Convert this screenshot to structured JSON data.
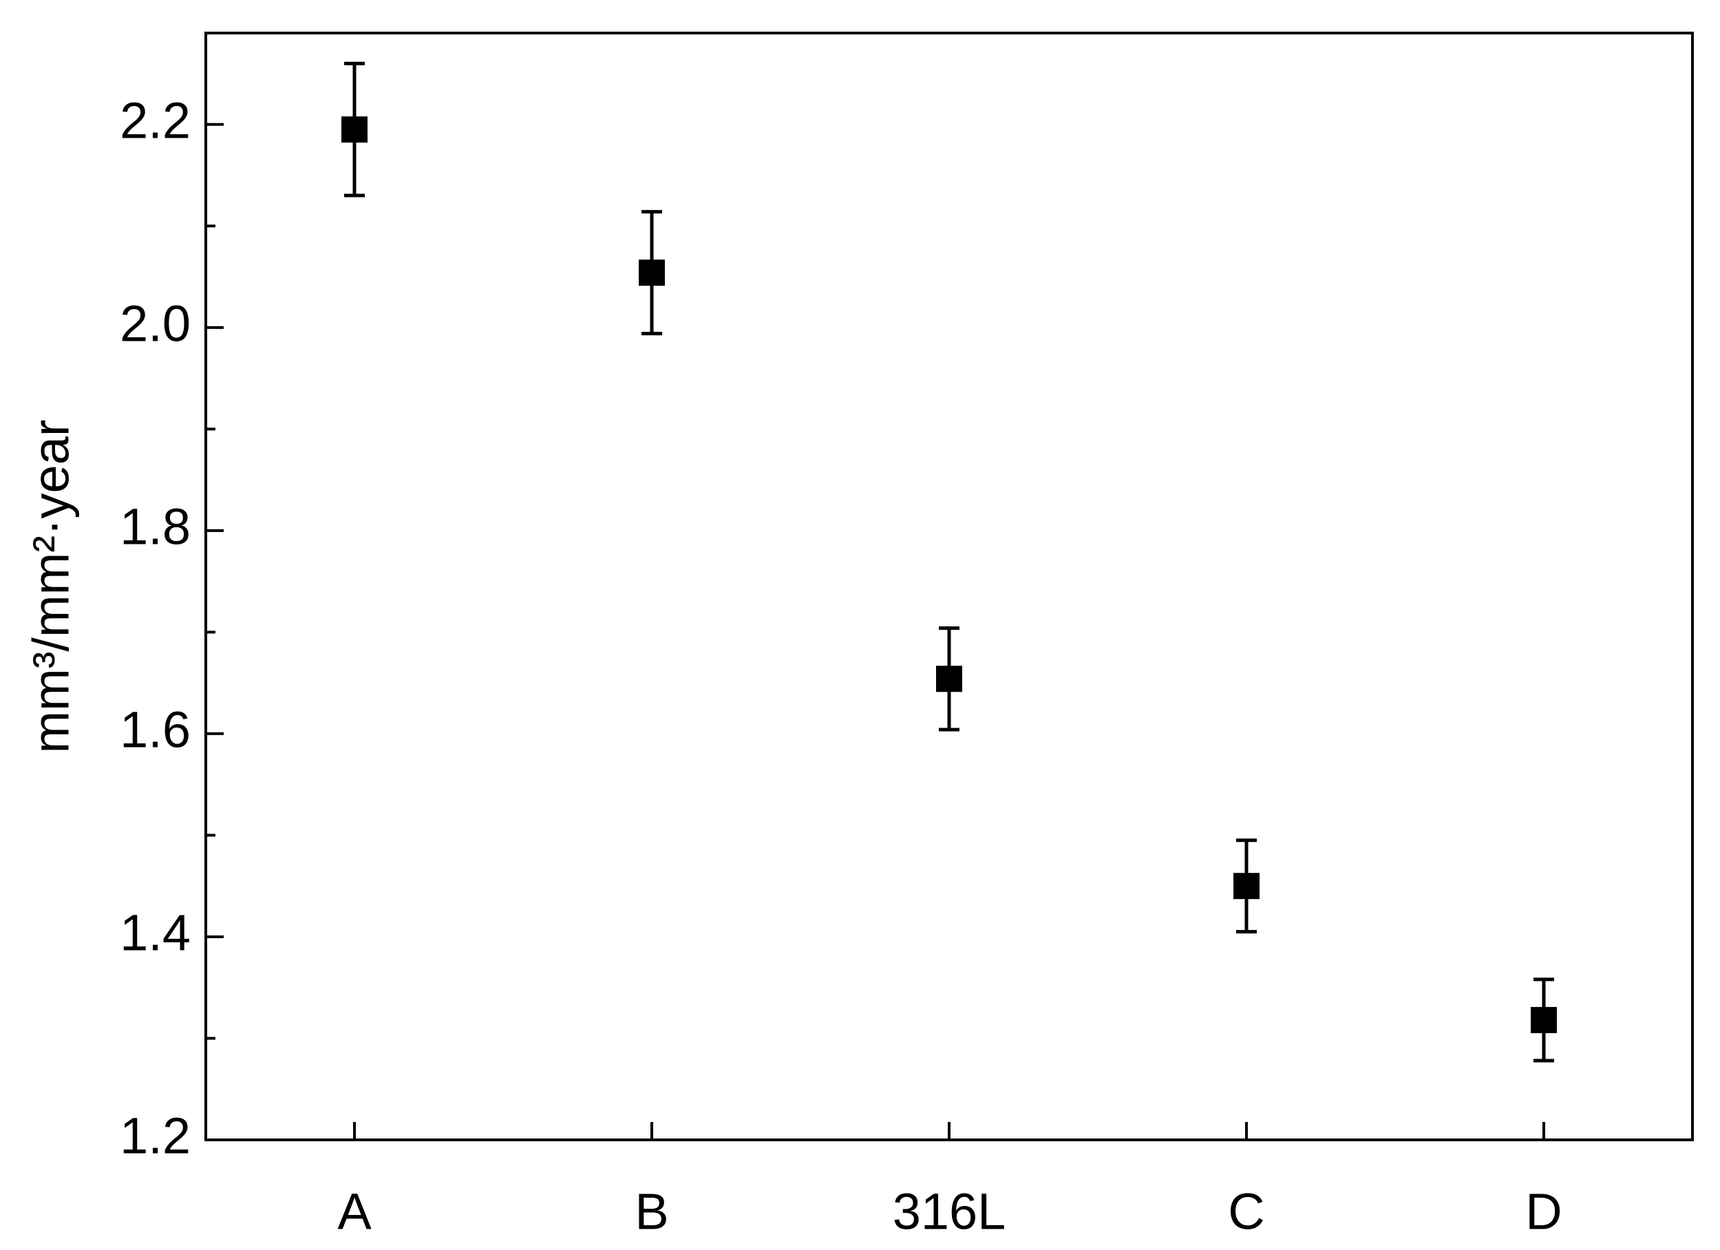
{
  "chart_data": {
    "type": "scatter",
    "ylabel": "mm³/mm²·year",
    "categories": [
      "A",
      "B",
      "316L",
      "C",
      "D"
    ],
    "values": [
      2.195,
      2.054,
      1.654,
      1.45,
      1.318
    ],
    "errors": [
      0.065,
      0.06,
      0.05,
      0.045,
      0.04
    ],
    "color": "#000000",
    "ylim": [
      1.2,
      2.29
    ],
    "yticks": [
      {
        "value": 1.2,
        "label": "1.2"
      },
      {
        "value": 1.4,
        "label": "1.4"
      },
      {
        "value": 1.6,
        "label": "1.6"
      },
      {
        "value": 1.8,
        "label": "1.8"
      },
      {
        "value": 2.0,
        "label": "2.0"
      },
      {
        "value": 2.2,
        "label": "2.2"
      }
    ],
    "yminorticks": [
      1.3,
      1.5,
      1.7,
      1.9,
      2.1
    ],
    "grid": false
  }
}
